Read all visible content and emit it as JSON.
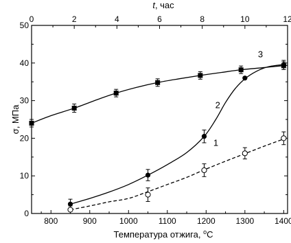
{
  "chart_data": {
    "type": "scatter",
    "xlabel": "Температура отжига, ",
    "xlabel_unit": "C",
    "xlabel_degree": "o",
    "ylabel": "σ, МПа",
    "top_axis_label_italic": "t",
    "top_axis_label_unit": ", час",
    "xlim": [
      750,
      1410
    ],
    "ylim": [
      0,
      50
    ],
    "top_xlim": [
      0,
      12
    ],
    "x_ticks": [
      "800",
      "900",
      "1000",
      "1100",
      "1200",
      "1300",
      "1400"
    ],
    "y_ticks": [
      "0",
      "10",
      "20",
      "30",
      "40",
      "50"
    ],
    "top_ticks": [
      "0",
      "2",
      "4",
      "6",
      "8",
      "10",
      "12"
    ],
    "grid": false,
    "series": [
      {
        "label": "3",
        "marker": "filled-square",
        "line": "solid",
        "x": [
          750,
          860,
          968,
          1075,
          1185,
          1290,
          1400
        ],
        "y": [
          24,
          28,
          32,
          34.8,
          36.7,
          38.2,
          39.3
        ],
        "err": [
          1,
          1.1,
          1,
          1,
          1,
          1,
          1
        ]
      },
      {
        "label": "2",
        "marker": "filled-circle",
        "line": "solid",
        "x": [
          850,
          1050,
          1195,
          1300,
          1400
        ],
        "y": [
          2.5,
          10.2,
          20.5,
          36,
          39.5
        ],
        "err": [
          1.3,
          1.5,
          1.7,
          0,
          1.2
        ]
      },
      {
        "label": "1",
        "marker": "open-circle",
        "line": "dashed",
        "x": [
          850,
          1050,
          1195,
          1300,
          1400
        ],
        "y": [
          1,
          5,
          11.5,
          16,
          20
        ],
        "err": [
          1,
          1.8,
          1.7,
          1.5,
          1.7
        ]
      }
    ],
    "curves": {
      "3": [
        [
          750,
          24
        ],
        [
          800,
          26
        ],
        [
          860,
          28
        ],
        [
          920,
          30.3
        ],
        [
          968,
          32
        ],
        [
          1020,
          33.5
        ],
        [
          1075,
          34.8
        ],
        [
          1130,
          35.8
        ],
        [
          1185,
          36.7
        ],
        [
          1240,
          37.5
        ],
        [
          1290,
          38.2
        ],
        [
          1350,
          38.8
        ],
        [
          1410,
          39.4
        ]
      ],
      "2": [
        [
          850,
          2.5
        ],
        [
          900,
          4
        ],
        [
          950,
          5.7
        ],
        [
          1000,
          7.7
        ],
        [
          1050,
          10.2
        ],
        [
          1100,
          13
        ],
        [
          1150,
          16.2
        ],
        [
          1195,
          20.5
        ],
        [
          1225,
          25
        ],
        [
          1250,
          29.5
        ],
        [
          1275,
          33.2
        ],
        [
          1300,
          35.8
        ],
        [
          1330,
          37.8
        ],
        [
          1360,
          39
        ],
        [
          1400,
          39.6
        ]
      ],
      "1": [
        [
          850,
          1
        ],
        [
          900,
          2
        ],
        [
          950,
          3.1
        ],
        [
          1000,
          4
        ],
        [
          1050,
          5.8
        ],
        [
          1100,
          7.7
        ],
        [
          1150,
          9.6
        ],
        [
          1195,
          11.6
        ],
        [
          1250,
          13.9
        ],
        [
          1300,
          15.9
        ],
        [
          1350,
          17.9
        ],
        [
          1400,
          19.8
        ]
      ]
    },
    "curve_label_pos": {
      "3": [
        1340,
        41.5
      ],
      "2": [
        1230,
        28
      ],
      "1": [
        1225,
        18
      ]
    }
  }
}
